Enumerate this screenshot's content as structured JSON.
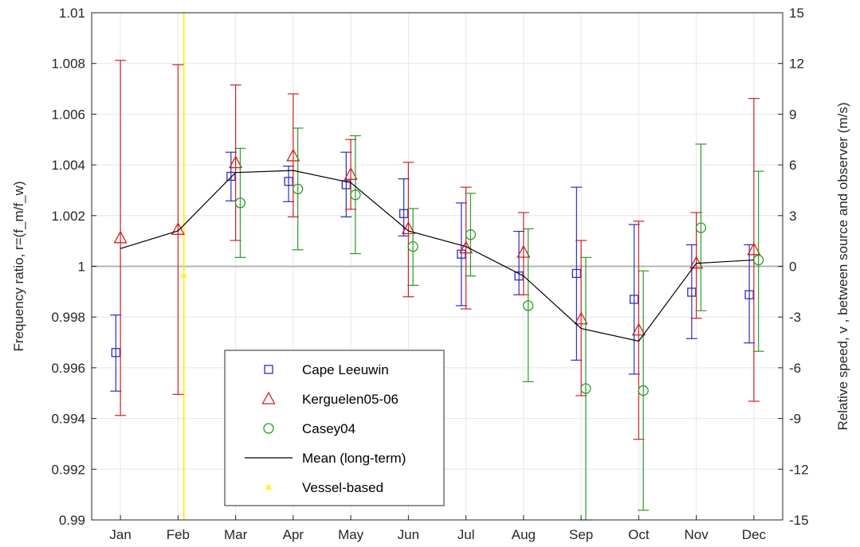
{
  "chart_data": {
    "type": "scatter",
    "categories": [
      "Jan",
      "Feb",
      "Mar",
      "Apr",
      "May",
      "Jun",
      "Jul",
      "Aug",
      "Sep",
      "Oct",
      "Nov",
      "Dec"
    ],
    "ylabel_left": "Frequency ratio, r=(f_m/f_w)",
    "ylabel_right": "Relative speed, v , between source and observer (m/s)",
    "ylim_left": [
      0.99,
      1.01
    ],
    "ylim_right": [
      -15,
      15
    ],
    "yticks_left": [
      "0.99",
      "0.992",
      "0.994",
      "0.996",
      "0.998",
      "1",
      "1.002",
      "1.004",
      "1.006",
      "1.008",
      "1.01"
    ],
    "yticks_right": [
      "-15",
      "-12",
      "-9",
      "-6",
      "-3",
      "0",
      "3",
      "6",
      "9",
      "12",
      "15"
    ],
    "grid": true,
    "reference_line": 1.0,
    "legend_position": "lower-left",
    "colors": {
      "cape": "#2b2bc8",
      "kerg": "#d42020",
      "casey": "#2a9a2a",
      "mean": "#000000",
      "vessel": "#ffee22",
      "grid": "#e6e6e6",
      "refline": "#b3b3b3"
    },
    "series": [
      {
        "name": "Cape Leeuwin",
        "marker": "square",
        "offset": -0.25,
        "points": [
          {
            "x": "Jan",
            "y": 0.9966,
            "lo": 0.99508,
            "hi": 0.99808
          },
          {
            "x": "Mar",
            "y": 1.00355,
            "lo": 1.00258,
            "hi": 1.0045
          },
          {
            "x": "Apr",
            "y": 1.00335,
            "lo": 1.00255,
            "hi": 1.00395
          },
          {
            "x": "May",
            "y": 1.00322,
            "lo": 1.00195,
            "hi": 1.0045
          },
          {
            "x": "Jun",
            "y": 1.00208,
            "lo": 1.0012,
            "hi": 1.00345
          },
          {
            "x": "Jul",
            "y": 1.00048,
            "lo": 0.99845,
            "hi": 1.0025
          },
          {
            "x": "Aug",
            "y": 0.99962,
            "lo": 0.99888,
            "hi": 1.00138
          },
          {
            "x": "Sep",
            "y": 0.99972,
            "lo": 0.9963,
            "hi": 1.00312
          },
          {
            "x": "Oct",
            "y": 0.9987,
            "lo": 0.99575,
            "hi": 1.00165
          },
          {
            "x": "Nov",
            "y": 0.99898,
            "lo": 0.99715,
            "hi": 1.00085
          },
          {
            "x": "Dec",
            "y": 0.99888,
            "lo": 0.99698,
            "hi": 1.00085
          }
        ]
      },
      {
        "name": "Kerguelen05-06",
        "marker": "triangle",
        "offset": 0.0,
        "points": [
          {
            "x": "Jan",
            "y": 1.00112,
            "lo": 0.99412,
            "hi": 1.00812
          },
          {
            "x": "Feb",
            "y": 1.00145,
            "lo": 0.99495,
            "hi": 1.00795
          },
          {
            "x": "Mar",
            "y": 1.00408,
            "lo": 1.00102,
            "hi": 1.00715
          },
          {
            "x": "Apr",
            "y": 1.00435,
            "lo": 1.00195,
            "hi": 1.0068
          },
          {
            "x": "May",
            "y": 1.00362,
            "lo": 1.00225,
            "hi": 1.005
          },
          {
            "x": "Jun",
            "y": 1.00148,
            "lo": 0.9988,
            "hi": 1.0041
          },
          {
            "x": "Jul",
            "y": 1.00072,
            "lo": 0.99832,
            "hi": 1.00312
          },
          {
            "x": "Aug",
            "y": 1.00055,
            "lo": 0.99888,
            "hi": 1.00212
          },
          {
            "x": "Sep",
            "y": 0.99792,
            "lo": 0.9949,
            "hi": 1.00102
          },
          {
            "x": "Oct",
            "y": 0.99748,
            "lo": 0.99318,
            "hi": 1.00178
          },
          {
            "x": "Nov",
            "y": 1.00012,
            "lo": 0.99795,
            "hi": 1.00212
          },
          {
            "x": "Dec",
            "y": 1.00065,
            "lo": 0.99468,
            "hi": 1.00662
          }
        ]
      },
      {
        "name": "Casey04",
        "marker": "circle",
        "offset": 0.25,
        "points": [
          {
            "x": "Mar",
            "y": 1.0025,
            "lo": 1.00035,
            "hi": 1.00465
          },
          {
            "x": "Apr",
            "y": 1.00305,
            "lo": 1.00065,
            "hi": 1.00545
          },
          {
            "x": "May",
            "y": 1.00282,
            "lo": 1.0005,
            "hi": 1.00515
          },
          {
            "x": "Jun",
            "y": 1.00078,
            "lo": 0.99925,
            "hi": 1.00228
          },
          {
            "x": "Jul",
            "y": 1.00125,
            "lo": 0.99962,
            "hi": 1.00288
          },
          {
            "x": "Aug",
            "y": 0.99845,
            "lo": 0.99545,
            "hi": 1.00148
          },
          {
            "x": "Sep",
            "y": 0.99518,
            "lo": 0.99,
            "hi": 1.00035
          },
          {
            "x": "Oct",
            "y": 0.9951,
            "lo": 0.99038,
            "hi": 0.99982
          },
          {
            "x": "Nov",
            "y": 1.00152,
            "lo": 0.99825,
            "hi": 1.00482
          },
          {
            "x": "Dec",
            "y": 1.00025,
            "lo": 0.99665,
            "hi": 1.00375
          }
        ]
      }
    ],
    "mean_series": {
      "name": "Mean (long-term)",
      "points": [
        {
          "x": "Jan",
          "y": 1.0007
        },
        {
          "x": "Feb",
          "y": 1.0014
        },
        {
          "x": "Mar",
          "y": 1.0037
        },
        {
          "x": "Apr",
          "y": 1.00378
        },
        {
          "x": "May",
          "y": 1.0033
        },
        {
          "x": "Jun",
          "y": 1.0014
        },
        {
          "x": "Jul",
          "y": 1.00078
        },
        {
          "x": "Aug",
          "y": 0.99962
        },
        {
          "x": "Sep",
          "y": 0.99755
        },
        {
          "x": "Oct",
          "y": 0.99705
        },
        {
          "x": "Nov",
          "y": 1.00012
        },
        {
          "x": "Dec",
          "y": 1.00025
        }
      ]
    },
    "vessel_series": {
      "name": "Vessel-based",
      "x_month": 1.6,
      "y": 0.99962
    }
  }
}
